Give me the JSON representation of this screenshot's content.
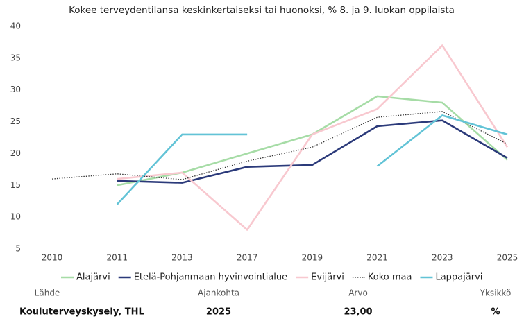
{
  "chart_data": {
    "type": "line",
    "title": "Kokee terveydentilansa keskinkertaiseksi tai huonoksi, % 8. ja 9. luokan oppilaista",
    "categories": [
      "2010",
      "2011",
      "2013",
      "2017",
      "2019",
      "2021",
      "2023",
      "2025"
    ],
    "ylim": [
      5,
      40
    ],
    "yticks": [
      5,
      10,
      15,
      20,
      25,
      30,
      35,
      40
    ],
    "grid": false,
    "legend": "bottom",
    "series": [
      {
        "name": "Alajärvi",
        "color": "#a6dca6",
        "dash": "solid",
        "values": [
          null,
          15,
          17,
          20,
          23,
          29,
          28,
          19
        ]
      },
      {
        "name": "Etelä-Pohjanmaan hyvinvointialue",
        "color": "#2b3a7a",
        "dash": "solid",
        "values": [
          null,
          15.7,
          15.4,
          17.9,
          18.2,
          24.3,
          25.2,
          19.3
        ]
      },
      {
        "name": "Evijärvi",
        "color": "#f8c8cf",
        "dash": "solid",
        "values": [
          null,
          16,
          17,
          8,
          23,
          27,
          37,
          21
        ]
      },
      {
        "name": "Koko maa",
        "color": "#333333",
        "dash": "dotted",
        "values": [
          16,
          16.8,
          15.9,
          18.8,
          21,
          25.7,
          26.6,
          21.5
        ]
      },
      {
        "name": "Lappajärvi",
        "color": "#62c3d6",
        "dash": "solid",
        "values": [
          null,
          12,
          23,
          23,
          null,
          18,
          26,
          23
        ]
      }
    ]
  },
  "footer": [
    {
      "label": "Lähde",
      "value": "Kouluterveyskysely, THL"
    },
    {
      "label": "Ajankohta",
      "value": "2025"
    },
    {
      "label": "Arvo",
      "value": "23,00"
    },
    {
      "label": "Yksikkö",
      "value": "%"
    }
  ]
}
